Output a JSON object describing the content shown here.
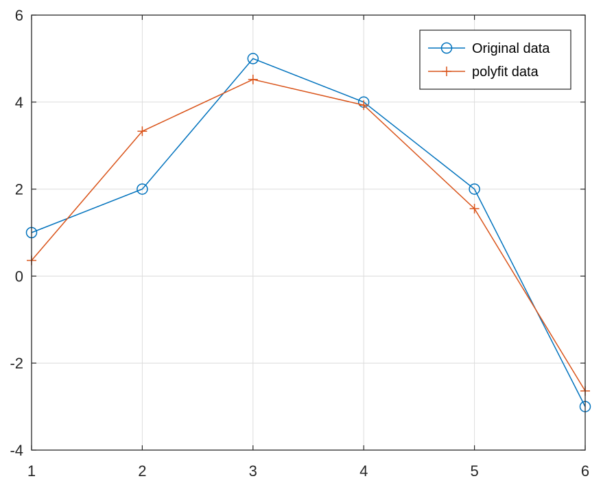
{
  "chart_data": {
    "type": "line",
    "title": "",
    "xlabel": "",
    "ylabel": "",
    "xlim": [
      1,
      6
    ],
    "ylim": [
      -4,
      6
    ],
    "xticks": [
      1,
      2,
      3,
      4,
      5,
      6
    ],
    "yticks": [
      -4,
      -2,
      0,
      2,
      4,
      6
    ],
    "xtick_labels": [
      "1",
      "2",
      "3",
      "4",
      "5",
      "6"
    ],
    "ytick_labels": [
      "-4",
      "-2",
      "0",
      "2",
      "4",
      "6"
    ],
    "grid": true,
    "legend_position": "top-right",
    "series": [
      {
        "name": "Original data",
        "color": "#0072BD",
        "marker": "circle",
        "x": [
          1,
          2,
          3,
          4,
          5,
          6
        ],
        "y": [
          1,
          2,
          5,
          4,
          2,
          -3
        ]
      },
      {
        "name": "polyfit data",
        "color": "#D95319",
        "marker": "plus",
        "x": [
          1,
          2,
          3,
          4,
          5,
          6
        ],
        "y": [
          0.36,
          3.33,
          4.52,
          3.93,
          1.55,
          -2.64
        ]
      }
    ]
  }
}
